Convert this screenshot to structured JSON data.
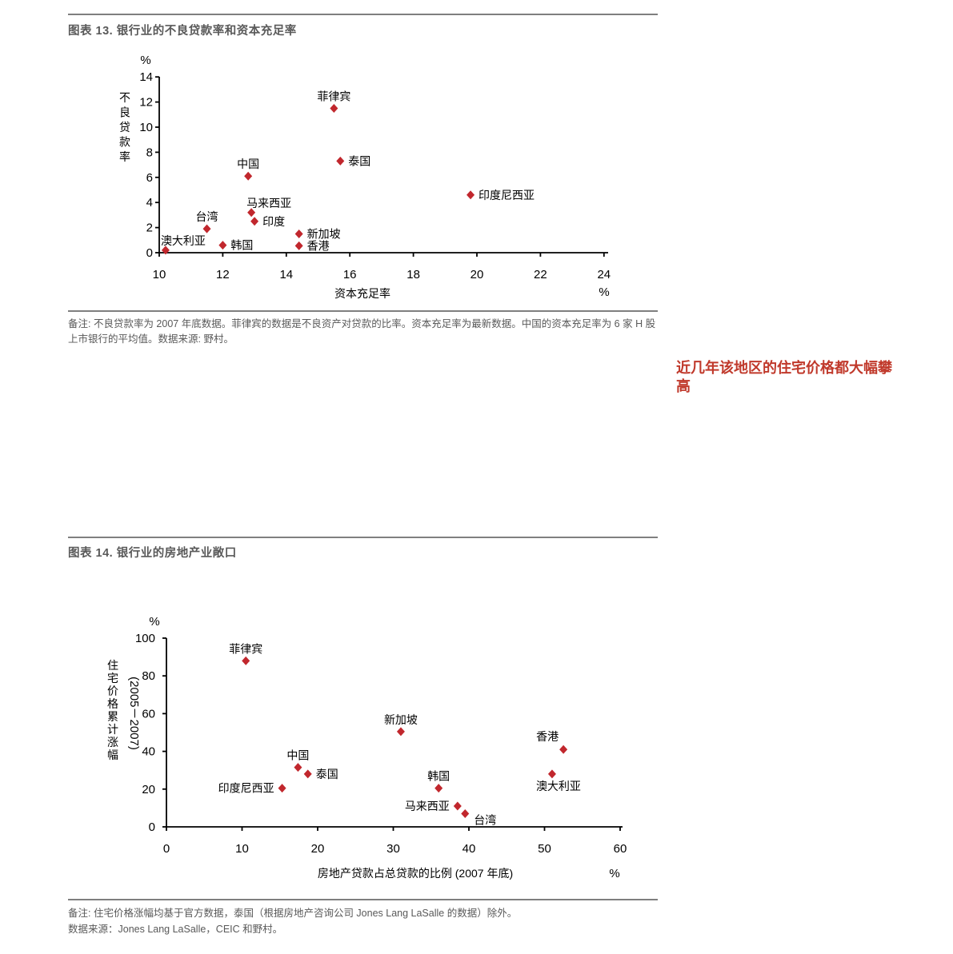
{
  "page": {
    "figure13": {
      "note": "备注: 不良贷款率为 2007 年底数据。菲律宾的数据是不良资产对贷款的比率。资本充足率为最新数据。中国的资本充足率为 6 家 H 股上市银行的平均值。数据来源: 野村。"
    },
    "sidenote": "近几年该地区的住宅价格都大幅攀高",
    "figure14": {
      "note_line1": "备注: 住宅价格涨幅均基于官方数据，泰国（根据房地产咨询公司 Jones Lang LaSalle 的数据）除外。",
      "note_line2": "数据来源：Jones Lang LaSalle，CEIC 和野村。"
    }
  },
  "colors": {
    "marker_red": "#c1272d",
    "note_red": "#c0392b",
    "text_gray": "#595959",
    "rule_gray": "#7f7f7f"
  },
  "chart_data": [
    {
      "type": "scatter",
      "title": "图表 13. 银行业的不良贷款率和资本充足率",
      "xlabel": "资本充足率",
      "ylabel": "不良贷款率",
      "x_unit": "%",
      "y_unit": "%",
      "xlim": [
        10,
        24
      ],
      "x_ticks": [
        10,
        12,
        14,
        16,
        18,
        20,
        22,
        24
      ],
      "ylim": [
        0,
        14
      ],
      "y_ticks": [
        0,
        2,
        4,
        6,
        8,
        10,
        12,
        14
      ],
      "grid": false,
      "marker": "diamond",
      "points": [
        {
          "label": "澳大利亚",
          "x": 10.2,
          "y": 0.2,
          "label_pos": "above-right"
        },
        {
          "label": "台湾",
          "x": 11.5,
          "y": 1.9,
          "label_pos": "above"
        },
        {
          "label": "韩国",
          "x": 12.0,
          "y": 0.6,
          "label_pos": "right"
        },
        {
          "label": "中国",
          "x": 12.8,
          "y": 6.1,
          "label_pos": "above"
        },
        {
          "label": "马来西亚",
          "x": 12.9,
          "y": 3.2,
          "label_pos": "above-right"
        },
        {
          "label": "印度",
          "x": 13.0,
          "y": 2.5,
          "label_pos": "right"
        },
        {
          "label": "新加坡",
          "x": 14.4,
          "y": 1.5,
          "label_pos": "right"
        },
        {
          "label": "香港",
          "x": 14.4,
          "y": 0.55,
          "label_pos": "right"
        },
        {
          "label": "菲律宾",
          "x": 15.5,
          "y": 11.5,
          "label_pos": "above"
        },
        {
          "label": "泰国",
          "x": 15.7,
          "y": 7.3,
          "label_pos": "right"
        },
        {
          "label": "印度尼西亚",
          "x": 19.8,
          "y": 4.6,
          "label_pos": "right"
        }
      ]
    },
    {
      "type": "scatter",
      "title": "图表 14. 银行业的房地产业敞口",
      "xlabel": "房地产贷款占总贷款的比例 (2007 年底)",
      "ylabel": "住宅价格累计涨幅",
      "ylabel2": "(2005－2007)",
      "x_unit": "%",
      "y_unit": "%",
      "xlim": [
        0,
        60
      ],
      "x_ticks": [
        0,
        10,
        20,
        30,
        40,
        50,
        60
      ],
      "ylim": [
        0,
        100
      ],
      "y_ticks": [
        0,
        20,
        40,
        60,
        80,
        100
      ],
      "grid": false,
      "marker": "diamond",
      "points": [
        {
          "label": "菲律宾",
          "x": 10.5,
          "y": 88,
          "label_pos": "above"
        },
        {
          "label": "印度尼西亚",
          "x": 15.3,
          "y": 20.5,
          "label_pos": "left"
        },
        {
          "label": "中国",
          "x": 17.4,
          "y": 31.5,
          "label_pos": "above"
        },
        {
          "label": "泰国",
          "x": 18.7,
          "y": 28,
          "label_pos": "right"
        },
        {
          "label": "新加坡",
          "x": 31,
          "y": 50.5,
          "label_pos": "above"
        },
        {
          "label": "韩国",
          "x": 36,
          "y": 20.5,
          "label_pos": "above"
        },
        {
          "label": "马来西亚",
          "x": 38.5,
          "y": 11,
          "label_pos": "left"
        },
        {
          "label": "台湾",
          "x": 39.5,
          "y": 7,
          "label_pos": "below-right"
        },
        {
          "label": "香港",
          "x": 52.5,
          "y": 41,
          "label_pos": "above-left"
        },
        {
          "label": "澳大利亚",
          "x": 51,
          "y": 28,
          "label_pos": "below"
        }
      ]
    }
  ]
}
